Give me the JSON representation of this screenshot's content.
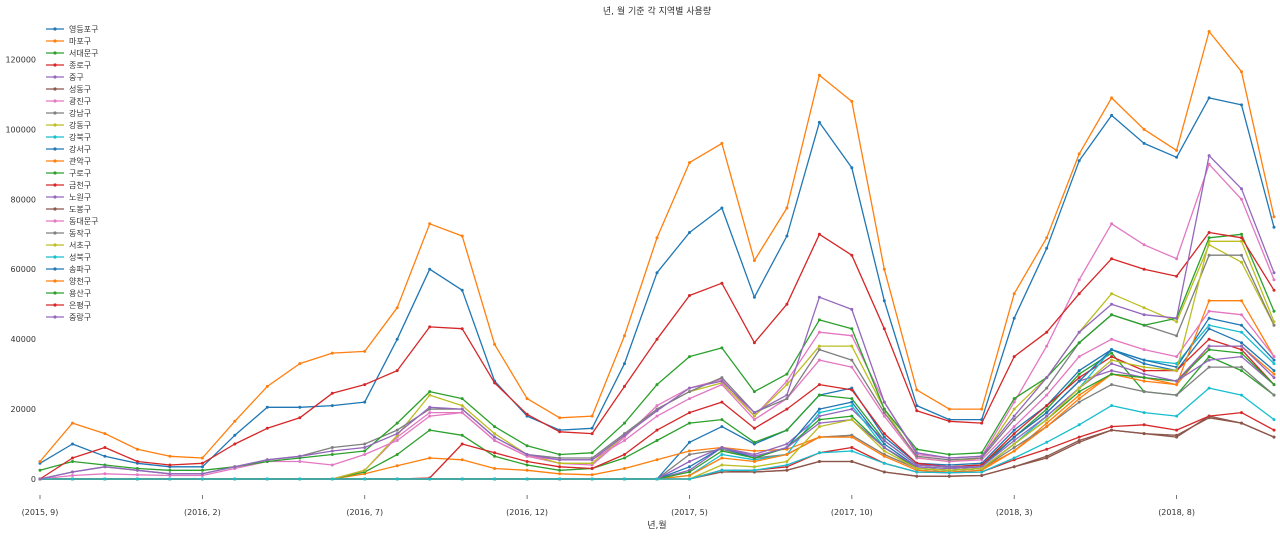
{
  "chart_data": {
    "type": "line",
    "title": "년, 월 기준 각 지역별 사용량",
    "xlabel": "년,월",
    "ylabel": "",
    "x_tick_labels": [
      "(2015, 9)",
      "(2016, 2)",
      "(2016, 7)",
      "(2016, 12)",
      "(2017, 5)",
      "(2017, 10)",
      "(2018, 3)",
      "(2018, 8)"
    ],
    "x_tick_positions": [
      0,
      5,
      10,
      15,
      20,
      25,
      30,
      35
    ],
    "y_ticks": [
      0,
      20000,
      40000,
      60000,
      80000,
      100000,
      120000
    ],
    "y_tick_labels": [
      "0",
      "20000",
      "40000",
      "60000",
      "80000",
      "100000",
      "120000"
    ],
    "ylim": [
      -2000,
      133000
    ],
    "xlim": [
      0,
      38
    ],
    "grid": false,
    "legend_position": "top-left",
    "categories": [
      "2015-09",
      "2015-10",
      "2015-11",
      "2015-12",
      "2016-01",
      "2016-02",
      "2016-03",
      "2016-04",
      "2016-05",
      "2016-06",
      "2016-07",
      "2016-08",
      "2016-09",
      "2016-10",
      "2016-11",
      "2016-12",
      "2017-01",
      "2017-02",
      "2017-03",
      "2017-04",
      "2017-05",
      "2017-06",
      "2017-07",
      "2017-08",
      "2017-09",
      "2017-10",
      "2017-11",
      "2017-12",
      "2018-01",
      "2018-02",
      "2018-03",
      "2018-04",
      "2018-05",
      "2018-06",
      "2018-07",
      "2018-08",
      "2018-09",
      "2018-10",
      "2018-11"
    ],
    "series": [
      {
        "name": "영등포구",
        "color": "#1f77b4",
        "values": [
          0,
          0,
          0,
          0,
          0,
          0,
          0,
          0,
          0,
          0,
          0,
          0,
          0,
          0,
          0,
          0,
          0,
          0,
          0,
          0,
          10500,
          15000,
          10000,
          14000,
          24000,
          26000,
          12000,
          4500,
          4000,
          4500,
          14000,
          21000,
          31000,
          37000,
          33000,
          31000,
          43000,
          39000,
          31000
        ]
      },
      {
        "name": "마포구",
        "color": "#ff7f0e",
        "values": [
          0,
          0,
          0,
          0,
          0,
          0,
          0,
          0,
          0,
          0,
          1500,
          3800,
          6000,
          5500,
          3000,
          2500,
          1500,
          1200,
          3000,
          5500,
          8000,
          9000,
          8000,
          8500,
          12000,
          12500,
          7000,
          3000,
          2500,
          3000,
          8000,
          16000,
          24000,
          30000,
          29000,
          27000,
          38000,
          38000,
          30000
        ]
      },
      {
        "name": "서대문구",
        "color": "#2ca02c",
        "values": [
          0,
          0,
          0,
          0,
          0,
          0,
          0,
          0,
          0,
          0,
          2000,
          7000,
          14000,
          12500,
          6500,
          4000,
          2500,
          3000,
          6000,
          11000,
          16000,
          17000,
          10500,
          14000,
          24000,
          23000,
          11000,
          4000,
          3500,
          4000,
          12000,
          20000,
          30000,
          36000,
          25000,
          24000,
          35000,
          31000,
          24000
        ]
      },
      {
        "name": "종로구",
        "color": "#d62728",
        "values": [
          0,
          0,
          0,
          0,
          0,
          0,
          0,
          0,
          0,
          0,
          0,
          0,
          300,
          10000,
          7500,
          5000,
          3500,
          3000,
          7000,
          14000,
          19000,
          22000,
          14500,
          20000,
          27000,
          25500,
          13000,
          4500,
          3500,
          4000,
          13000,
          21000,
          29000,
          35000,
          31000,
          31000,
          40000,
          37000,
          27000
        ]
      },
      {
        "name": "중구",
        "color": "#9467bd",
        "values": [
          0,
          0,
          0,
          0,
          0,
          0,
          0,
          0,
          0,
          0,
          0,
          0,
          0,
          0,
          0,
          0,
          0,
          0,
          0,
          0,
          2500,
          9000,
          7000,
          10000,
          18000,
          20000,
          11000,
          4000,
          3500,
          3500,
          12000,
          19000,
          28000,
          31000,
          29000,
          28000,
          34000,
          35000,
          27000
        ]
      },
      {
        "name": "성동구",
        "color": "#8c564b",
        "values": [
          0,
          0,
          0,
          0,
          0,
          0,
          0,
          0,
          0,
          0,
          0,
          0,
          0,
          0,
          0,
          0,
          0,
          0,
          0,
          0,
          0,
          2500,
          2000,
          2500,
          5000,
          5000,
          2000,
          800,
          800,
          1000,
          3500,
          6500,
          11000,
          14000,
          13000,
          12000,
          18000,
          16000,
          12000
        ]
      },
      {
        "name": "광진구",
        "color": "#e377c2",
        "values": [
          0,
          0,
          0,
          0,
          0,
          0,
          0,
          0,
          0,
          0,
          2500,
          12000,
          19000,
          19000,
          11000,
          6500,
          4500,
          4000,
          12000,
          21000,
          26000,
          28500,
          18000,
          28000,
          42000,
          41000,
          22000,
          7000,
          6000,
          6500,
          22000,
          38000,
          57000,
          73000,
          67000,
          63000,
          90000,
          80000,
          57000
        ]
      },
      {
        "name": "강남구",
        "color": "#7f7f7f",
        "values": [
          0,
          0,
          0,
          0,
          0,
          0,
          0,
          0,
          0,
          0,
          0,
          0,
          0,
          0,
          0,
          0,
          0,
          0,
          0,
          0,
          7000,
          8500,
          6000,
          7000,
          12000,
          12500,
          7000,
          3000,
          2500,
          3000,
          9000,
          15000,
          22000,
          27000,
          25000,
          24000,
          32000,
          32000,
          24000
        ]
      },
      {
        "name": "강동구",
        "color": "#bcbd22",
        "values": [
          0,
          0,
          0,
          0,
          0,
          0,
          0,
          0,
          0,
          0,
          2500,
          12500,
          24000,
          21000,
          13000,
          7000,
          4500,
          4500,
          12500,
          20000,
          25000,
          27500,
          18000,
          27000,
          38000,
          38000,
          20000,
          6000,
          5000,
          6000,
          20000,
          29000,
          42000,
          53000,
          49000,
          45000,
          67000,
          62000,
          44000
        ]
      },
      {
        "name": "강북구",
        "color": "#17becf",
        "values": [
          0,
          0,
          0,
          0,
          0,
          0,
          0,
          0,
          0,
          0,
          0,
          0,
          0,
          0,
          0,
          0,
          0,
          0,
          0,
          0,
          1000,
          7000,
          5500,
          7000,
          19000,
          21000,
          9000,
          3000,
          2500,
          3000,
          10000,
          18000,
          26000,
          37000,
          34000,
          33000,
          44000,
          42000,
          33000
        ]
      },
      {
        "name": "강서구",
        "color": "#1f77b4",
        "values": [
          0,
          0,
          0,
          0,
          0,
          0,
          0,
          0,
          0,
          0,
          0,
          0,
          0,
          0,
          0,
          0,
          0,
          0,
          0,
          0,
          3500,
          9000,
          6000,
          9000,
          20000,
          22000,
          10000,
          3500,
          3000,
          3500,
          12000,
          19000,
          28000,
          37000,
          34000,
          32000,
          46000,
          44000,
          34000
        ]
      },
      {
        "name": "관악구",
        "color": "#ff7f0e",
        "values": [
          0,
          0,
          0,
          0,
          0,
          0,
          0,
          0,
          0,
          0,
          0,
          0,
          0,
          0,
          0,
          0,
          0,
          0,
          0,
          0,
          1000,
          6000,
          5000,
          7000,
          12000,
          12000,
          6500,
          2500,
          2000,
          2500,
          8000,
          15000,
          23000,
          30000,
          28000,
          27000,
          51000,
          51000,
          35000
        ]
      },
      {
        "name": "구로구",
        "color": "#2ca02c",
        "values": [
          0,
          0,
          0,
          0,
          0,
          0,
          0,
          0,
          0,
          0,
          0,
          0,
          0,
          0,
          0,
          0,
          0,
          0,
          0,
          0,
          2000,
          8000,
          6000,
          9000,
          17000,
          18000,
          9000,
          3000,
          2500,
          3000,
          10000,
          17000,
          25000,
          30000,
          29000,
          28000,
          37000,
          36000,
          27000
        ]
      },
      {
        "name": "금천구",
        "color": "#d62728",
        "values": [
          0,
          0,
          0,
          0,
          0,
          0,
          0,
          0,
          0,
          0,
          0,
          0,
          0,
          0,
          0,
          0,
          0,
          0,
          0,
          0,
          0,
          2500,
          2500,
          3500,
          7500,
          9000,
          4500,
          2000,
          1800,
          2000,
          5500,
          8500,
          12000,
          15000,
          15500,
          14000,
          18000,
          19000,
          14000
        ]
      },
      {
        "name": "노원구",
        "color": "#9467bd",
        "values": [
          0,
          0,
          0,
          0,
          0,
          0,
          0,
          0,
          0,
          0,
          0,
          0,
          0,
          0,
          0,
          0,
          0,
          0,
          0,
          0,
          5000,
          9000,
          6500,
          9000,
          16000,
          17000,
          9000,
          3500,
          3000,
          3500,
          11000,
          18000,
          26000,
          33000,
          30000,
          28000,
          38000,
          38000,
          29000
        ]
      },
      {
        "name": "도봉구",
        "color": "#8c564b",
        "values": [
          0,
          0,
          0,
          0,
          0,
          0,
          0,
          0,
          0,
          0,
          0,
          0,
          0,
          0,
          0,
          0,
          0,
          0,
          0,
          0,
          0,
          2000,
          2000,
          2500,
          5000,
          5000,
          2000,
          800,
          800,
          1000,
          3500,
          6000,
          10500,
          14000,
          13000,
          12500,
          17500,
          16000,
          12000
        ]
      },
      {
        "name": "동대문구",
        "color": "#e377c2",
        "values": [
          0,
          1000,
          1500,
          1200,
          1000,
          1000,
          3000,
          5000,
          5000,
          4000,
          7000,
          11000,
          18000,
          19000,
          11000,
          6500,
          5500,
          5500,
          11000,
          18000,
          23000,
          27000,
          17000,
          23000,
          34000,
          32000,
          18000,
          6000,
          5000,
          5500,
          15000,
          24000,
          35000,
          40000,
          37000,
          35000,
          48000,
          47000,
          35000
        ]
      },
      {
        "name": "동작구",
        "color": "#7f7f7f",
        "values": [
          0,
          2000,
          3500,
          2500,
          1500,
          1500,
          3500,
          5500,
          6500,
          9000,
          10000,
          14000,
          20000,
          20000,
          12000,
          7000,
          6000,
          6000,
          13000,
          20000,
          25000,
          29000,
          19000,
          23000,
          37000,
          34000,
          19000,
          6500,
          5500,
          6000,
          17000,
          26000,
          39000,
          47000,
          44000,
          41000,
          64000,
          64000,
          44000
        ]
      },
      {
        "name": "서초구",
        "color": "#bcbd22",
        "values": [
          0,
          0,
          0,
          0,
          0,
          0,
          0,
          0,
          0,
          0,
          0,
          0,
          0,
          0,
          0,
          0,
          0,
          0,
          0,
          0,
          0,
          4000,
          3500,
          5000,
          15000,
          17000,
          8000,
          3000,
          2500,
          3000,
          10000,
          17000,
          26000,
          34000,
          32000,
          31000,
          68000,
          68000,
          45000
        ]
      },
      {
        "name": "성북구",
        "color": "#17becf",
        "values": [
          0,
          0,
          0,
          0,
          0,
          0,
          0,
          0,
          0,
          0,
          0,
          0,
          0,
          0,
          0,
          0,
          0,
          0,
          0,
          0,
          0,
          2500,
          2500,
          4000,
          7500,
          8000,
          4500,
          2000,
          1800,
          2000,
          6000,
          10500,
          15500,
          21000,
          19000,
          18000,
          26000,
          24000,
          17000
        ]
      },
      {
        "name": "송파구",
        "color": "#1f77b4",
        "values": [
          4500,
          10000,
          6500,
          4500,
          3500,
          3500,
          12500,
          20500,
          20500,
          21000,
          22000,
          40000,
          60000,
          54000,
          28000,
          18000,
          14000,
          14500,
          33000,
          59000,
          70500,
          77500,
          52000,
          69500,
          102000,
          89000,
          51000,
          21000,
          17000,
          17000,
          46000,
          66000,
          91000,
          104000,
          96000,
          92000,
          109000,
          107000,
          72000
        ]
      },
      {
        "name": "양천구",
        "color": "#ff7f0e",
        "values": [
          5000,
          16000,
          13000,
          8500,
          6500,
          6000,
          16500,
          26500,
          33000,
          36000,
          36500,
          49000,
          73000,
          69500,
          38500,
          23000,
          17500,
          18000,
          41000,
          69000,
          90500,
          96000,
          62500,
          77500,
          115500,
          108000,
          60000,
          25500,
          20000,
          20000,
          53000,
          69000,
          93000,
          109000,
          100000,
          94000,
          128000,
          116500,
          75000
        ]
      },
      {
        "name": "용산구",
        "color": "#2ca02c",
        "values": [
          2500,
          5000,
          4000,
          3000,
          2500,
          2500,
          3500,
          5000,
          6000,
          7000,
          8000,
          16000,
          25000,
          23000,
          15000,
          9500,
          7000,
          7500,
          16000,
          27000,
          35000,
          37500,
          25000,
          30000,
          45500,
          43000,
          20000,
          8500,
          7000,
          7500,
          23000,
          29000,
          39000,
          47000,
          44000,
          46000,
          69000,
          70000,
          48000
        ]
      },
      {
        "name": "은평구",
        "color": "#d62728",
        "values": [
          0,
          6000,
          9000,
          5000,
          4000,
          4500,
          10000,
          14500,
          17500,
          24500,
          27000,
          31000,
          43500,
          43000,
          27500,
          18500,
          13500,
          13000,
          26500,
          40000,
          52500,
          56000,
          39000,
          50000,
          70000,
          64000,
          43000,
          19500,
          16500,
          16000,
          35000,
          42000,
          53000,
          63000,
          60000,
          58000,
          70500,
          69000,
          54000
        ]
      },
      {
        "name": "중랑구",
        "color": "#9467bd",
        "values": [
          0,
          2000,
          3500,
          2500,
          1500,
          1500,
          3500,
          5500,
          6500,
          8000,
          9000,
          13000,
          20500,
          20000,
          12000,
          7000,
          5500,
          5500,
          12500,
          19500,
          26000,
          28000,
          19000,
          24000,
          52000,
          48500,
          22000,
          7500,
          6000,
          6500,
          18000,
          29000,
          42000,
          50000,
          47000,
          46000,
          92500,
          83000,
          59000
        ]
      }
    ]
  }
}
